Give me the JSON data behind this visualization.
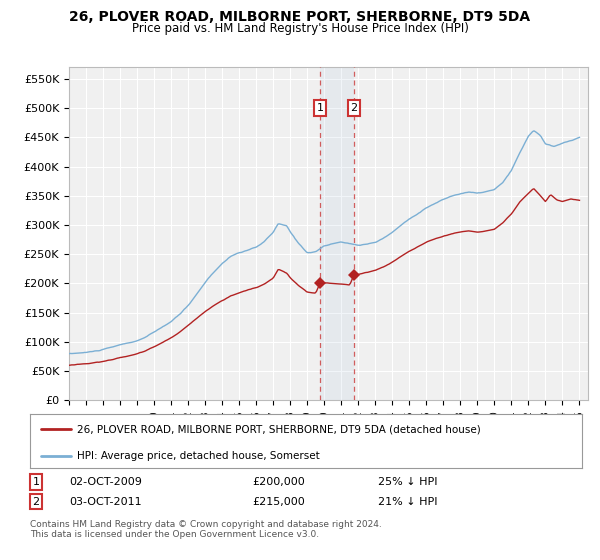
{
  "title": "26, PLOVER ROAD, MILBORNE PORT, SHERBORNE, DT9 5DA",
  "subtitle": "Price paid vs. HM Land Registry's House Price Index (HPI)",
  "legend_line1": "26, PLOVER ROAD, MILBORNE PORT, SHERBORNE, DT9 5DA (detached house)",
  "legend_line2": "HPI: Average price, detached house, Somerset",
  "annotation1_label": "1",
  "annotation1_date": "02-OCT-2009",
  "annotation1_price": "£200,000",
  "annotation1_hpi": "25% ↓ HPI",
  "annotation2_label": "2",
  "annotation2_date": "03-OCT-2011",
  "annotation2_price": "£215,000",
  "annotation2_hpi": "21% ↓ HPI",
  "footnote": "Contains HM Land Registry data © Crown copyright and database right 2024.\nThis data is licensed under the Open Government Licence v3.0.",
  "hpi_color": "#7bafd4",
  "price_color": "#b22222",
  "sale1_x": 2009.75,
  "sale1_y": 200000,
  "sale2_x": 2011.75,
  "sale2_y": 215000,
  "shaded_x_start": 2009.75,
  "shaded_x_end": 2011.75,
  "ylim_min": 0,
  "ylim_max": 570000,
  "xlim_min": 1995.0,
  "xlim_max": 2025.5,
  "yticks": [
    0,
    50000,
    100000,
    150000,
    200000,
    250000,
    300000,
    350000,
    400000,
    450000,
    500000,
    550000
  ],
  "ytick_labels": [
    "£0",
    "£50K",
    "£100K",
    "£150K",
    "£200K",
    "£250K",
    "£300K",
    "£350K",
    "£400K",
    "£450K",
    "£500K",
    "£550K"
  ],
  "background_color": "#f0f0f0",
  "grid_color": "#ffffff"
}
